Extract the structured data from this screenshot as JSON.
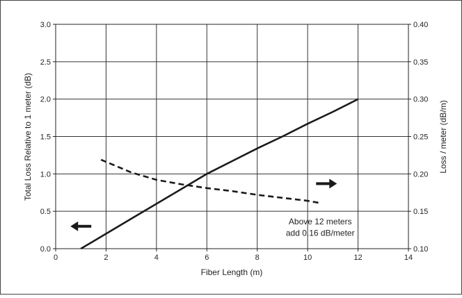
{
  "chart_data": {
    "type": "line",
    "xlabel": "Fiber Length (m)",
    "ylabel": "Total Loss Relative to 1 meter (dB)",
    "y2label": "Loss / meter (dB/m)",
    "xlim": [
      0,
      14
    ],
    "ylim": [
      0,
      3.0
    ],
    "y2lim": [
      0.1,
      0.4
    ],
    "grid": true,
    "x_ticks": [
      "0",
      "2",
      "4",
      "6",
      "8",
      "10",
      "12",
      "14"
    ],
    "y_ticks": [
      "0.0",
      "0.5",
      "1.0",
      "1.5",
      "2.0",
      "2.5",
      "3.0"
    ],
    "y2_ticks": [
      "0.10",
      "0.15",
      "0.20",
      "0.25",
      "0.30",
      "0.35",
      "0.40"
    ],
    "series": [
      {
        "axis": "left",
        "style": "solid",
        "color": "#1a1a1a",
        "x": [
          1,
          2,
          3,
          4,
          5,
          6,
          7,
          8,
          9,
          10,
          11,
          12
        ],
        "y": [
          0.0,
          0.2,
          0.4,
          0.6,
          0.8,
          1.0,
          1.17,
          1.34,
          1.5,
          1.67,
          1.83,
          2.0
        ]
      },
      {
        "axis": "right",
        "style": "dashed",
        "color": "#1a1a1a",
        "x": [
          1.8,
          2.5,
          3.0,
          4.0,
          5.0,
          6.0,
          7.0,
          8.0,
          9.0,
          10.0,
          10.5
        ],
        "y": [
          0.219,
          0.209,
          0.202,
          0.192,
          0.186,
          0.181,
          0.177,
          0.172,
          0.168,
          0.164,
          0.161
        ]
      }
    ],
    "annotations": [
      {
        "text": "Above 12 meters",
        "x": 10.5,
        "y": 0.36
      },
      {
        "text": "add 0.16 dB/meter",
        "x": 10.5,
        "y": 0.21
      }
    ],
    "arrows": [
      {
        "direction": "left",
        "axis": "left",
        "x": 1.0,
        "y": 0.3
      },
      {
        "direction": "right",
        "axis": "left",
        "x": 10.75,
        "y": 0.87
      }
    ]
  }
}
